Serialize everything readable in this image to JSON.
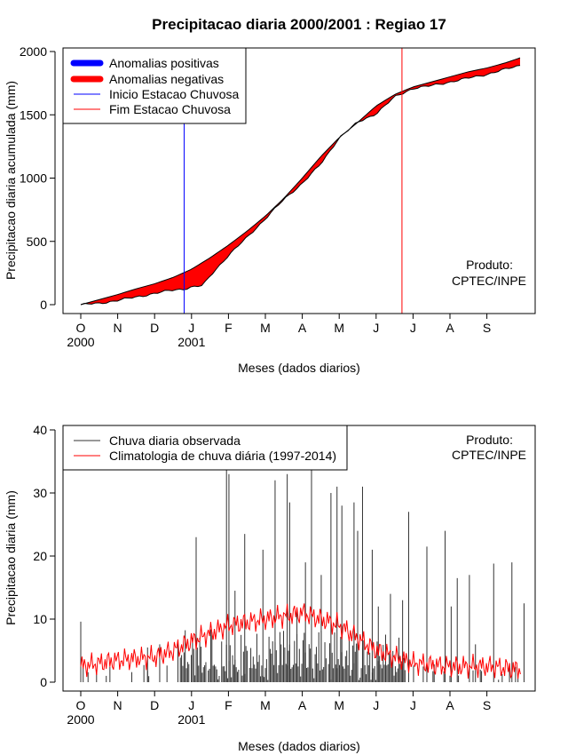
{
  "chart_data": [
    {
      "type": "area",
      "title": "Precipitacao diaria 2000/2001 : Regiao 17",
      "xlabel": "Meses (dados diarios)",
      "ylabel": "Precipitacao diaria acumulada (mm)",
      "ylim": [
        0,
        2000
      ],
      "yticks": [
        0,
        500,
        1000,
        1500,
        2000
      ],
      "month_labels": [
        "O",
        "N",
        "D",
        "J",
        "F",
        "M",
        "A",
        "M",
        "J",
        "J",
        "A",
        "S"
      ],
      "year_labels": [
        {
          "month_index": 0,
          "label": "2000"
        },
        {
          "month_index": 3,
          "label": "2001"
        }
      ],
      "legend": [
        {
          "label": "Anomalias positivas",
          "color": "#0000ff",
          "style": "thick"
        },
        {
          "label": "Anomalias negativas",
          "color": "#ff0000",
          "style": "thick"
        },
        {
          "label": "Inicio Estacao Chuvosa",
          "color": "#0000ff",
          "style": "thin"
        },
        {
          "label": "Fim Estacao Chuvosa",
          "color": "#ff0000",
          "style": "thin"
        }
      ],
      "inicio_estacao_chuvosa_month": 2.8,
      "fim_estacao_chuvosa_month": 8.7,
      "producer_label": [
        "Produto:",
        "CPTEC/INPE"
      ],
      "series": [
        {
          "name": "Climatologia acumulada",
          "x_months": [
            0,
            0.5,
            1,
            1.5,
            2,
            2.5,
            3,
            3.5,
            4,
            4.5,
            5,
            5.5,
            6,
            6.5,
            7,
            7.5,
            8,
            8.5,
            9,
            9.5,
            10,
            10.5,
            11,
            11.5,
            11.9
          ],
          "values": [
            0,
            40,
            80,
            125,
            165,
            215,
            280,
            370,
            470,
            580,
            700,
            840,
            1000,
            1170,
            1320,
            1440,
            1570,
            1660,
            1720,
            1760,
            1800,
            1840,
            1870,
            1910,
            1950
          ]
        },
        {
          "name": "Observada acumulada",
          "x_months": [
            0,
            0.5,
            1,
            1.5,
            2,
            2.5,
            2.8,
            3,
            3.3,
            3.6,
            4,
            4.5,
            5,
            5.5,
            6,
            6.5,
            7,
            7.5,
            8,
            8.5,
            9,
            9.5,
            10,
            10.5,
            11,
            11.5,
            11.9
          ],
          "values": [
            0,
            10,
            35,
            60,
            90,
            115,
            125,
            140,
            150,
            260,
            390,
            530,
            680,
            830,
            960,
            1110,
            1320,
            1440,
            1510,
            1640,
            1710,
            1730,
            1760,
            1790,
            1820,
            1860,
            1890
          ]
        }
      ]
    },
    {
      "type": "bar",
      "title": "",
      "xlabel": "Meses (dados diarios)",
      "ylabel": "Precipitacao diaria (mm)",
      "ylim": [
        0,
        40
      ],
      "yticks": [
        0,
        10,
        20,
        30,
        40
      ],
      "month_labels": [
        "O",
        "N",
        "D",
        "J",
        "F",
        "M",
        "A",
        "M",
        "J",
        "J",
        "A",
        "S"
      ],
      "year_labels": [
        {
          "month_index": 0,
          "label": "2000"
        },
        {
          "month_index": 3,
          "label": "2001"
        }
      ],
      "legend": [
        {
          "label": "Chuva diaria observada",
          "color": "#333333"
        },
        {
          "label": "Climatologia de chuva diária (1997-2014)",
          "color": "#ff0000"
        }
      ],
      "producer_label": [
        "Produto:",
        "CPTEC/INPE"
      ],
      "series": [
        {
          "name": "Chuva diaria observada (picos)",
          "x_days": [
            0,
            55,
            65,
            95,
            120,
            122,
            127,
            135,
            150,
            160,
            170,
            172,
            178,
            185,
            190,
            198,
            206,
            211,
            215,
            225,
            228,
            232,
            240,
            245,
            255,
            265,
            270,
            285,
            300,
            305,
            310,
            320,
            325,
            340,
            355,
            365
          ],
          "values": [
            9.6,
            5.5,
            6,
            23,
            35,
            33,
            14.5,
            23.5,
            21,
            32,
            33,
            28.5,
            11.5,
            19,
            34,
            17,
            30,
            31,
            28,
            28.5,
            24,
            31,
            21,
            12,
            14,
            13,
            27,
            21.5,
            24,
            12,
            16.5,
            17,
            6,
            18.8,
            19,
            12.5
          ]
        },
        {
          "name": "Climatologia (nivel)",
          "x_months": [
            0,
            1,
            2,
            2.5,
            3,
            4,
            5,
            6,
            7,
            8,
            8.5,
            9,
            10,
            11,
            11.9
          ],
          "values": [
            2.5,
            3.5,
            4,
            5,
            6.5,
            9,
            10,
            11,
            9,
            5,
            4,
            3,
            2.5,
            2.5,
            2
          ]
        }
      ]
    }
  ]
}
